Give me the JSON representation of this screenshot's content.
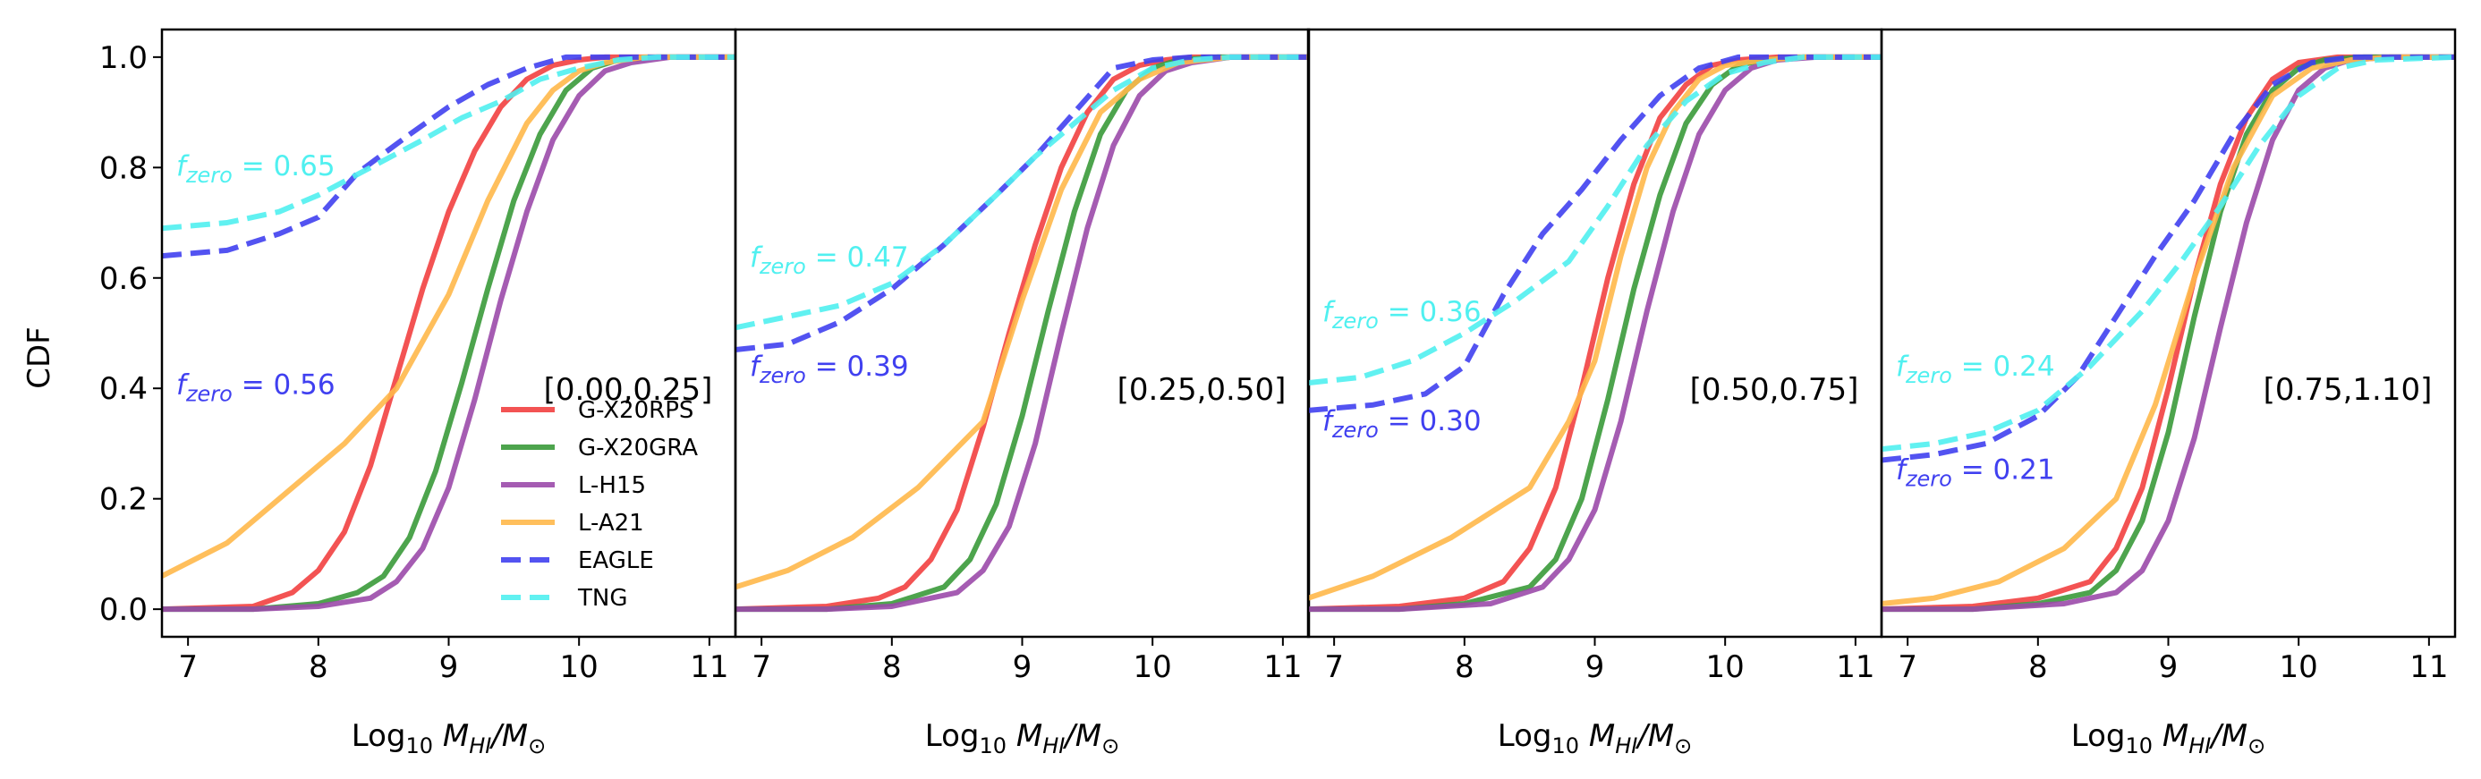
{
  "figure": {
    "ylabel": "CDF",
    "xlabel_main": "Log",
    "xlabel_sub": "10",
    "xlabel_quantity": "M",
    "xlabel_qsub": "HI",
    "xlabel_denominator": "/M",
    "xlabel_dsub": "⊙",
    "fzero_f": "f",
    "fzero_sub": "zero",
    "fzero_eq": " = "
  },
  "colors": {
    "G-X20RPS": "#f24040",
    "G-X20GRA": "#3a9a3a",
    "L-H15": "#9b4aaa",
    "L-A21": "#ffb84a",
    "EAGLE": "#4040f0",
    "TNG": "#50f0f0"
  },
  "legend": {
    "placement": "lower-right of first panel",
    "entries": [
      {
        "label": "G-X20RPS",
        "style": "solid",
        "color_key": "G-X20RPS"
      },
      {
        "label": "G-X20GRA",
        "style": "solid",
        "color_key": "G-X20GRA"
      },
      {
        "label": "L-H15",
        "style": "solid",
        "color_key": "L-H15"
      },
      {
        "label": "L-A21",
        "style": "solid",
        "color_key": "L-A21"
      },
      {
        "label": "EAGLE",
        "style": "dashed",
        "color_key": "EAGLE"
      },
      {
        "label": "TNG",
        "style": "dashed",
        "color_key": "TNG"
      }
    ]
  },
  "chart_data": [
    {
      "type": "line",
      "bin_label": "[0.00,0.25]",
      "xlim": [
        6.8,
        11.2
      ],
      "ylim": [
        -0.05,
        1.05
      ],
      "xticks": [
        "7",
        "8",
        "9",
        "10",
        "11"
      ],
      "yticks": [
        "0.0",
        "0.2",
        "0.4",
        "0.6",
        "0.8",
        "1.0"
      ],
      "fzero": [
        {
          "series": "TNG",
          "value": "0.65"
        },
        {
          "series": "EAGLE",
          "value": "0.56"
        }
      ],
      "series": [
        {
          "name": "G-X20RPS",
          "style": "solid",
          "x": [
            6.8,
            7.5,
            7.8,
            8.0,
            8.2,
            8.4,
            8.6,
            8.8,
            9.0,
            9.2,
            9.4,
            9.6,
            9.8,
            10.0,
            10.2,
            10.5,
            11.2
          ],
          "y": [
            0.0,
            0.005,
            0.03,
            0.07,
            0.14,
            0.26,
            0.42,
            0.58,
            0.72,
            0.83,
            0.91,
            0.96,
            0.985,
            0.995,
            1.0,
            1.0,
            1.0
          ]
        },
        {
          "name": "G-X20GRA",
          "style": "solid",
          "x": [
            6.8,
            7.5,
            8.0,
            8.3,
            8.5,
            8.7,
            8.9,
            9.1,
            9.3,
            9.5,
            9.7,
            9.9,
            10.1,
            10.3,
            10.6,
            11.2
          ],
          "y": [
            0.0,
            0.0,
            0.01,
            0.03,
            0.06,
            0.13,
            0.25,
            0.41,
            0.58,
            0.74,
            0.86,
            0.94,
            0.98,
            0.995,
            1.0,
            1.0
          ]
        },
        {
          "name": "L-H15",
          "style": "solid",
          "x": [
            6.8,
            7.5,
            8.0,
            8.4,
            8.6,
            8.8,
            9.0,
            9.2,
            9.4,
            9.6,
            9.8,
            10.0,
            10.2,
            10.4,
            10.7,
            11.2
          ],
          "y": [
            0.0,
            0.0,
            0.005,
            0.02,
            0.05,
            0.11,
            0.22,
            0.38,
            0.56,
            0.72,
            0.85,
            0.93,
            0.975,
            0.99,
            1.0,
            1.0
          ]
        },
        {
          "name": "L-A21",
          "style": "solid",
          "x": [
            6.8,
            7.3,
            7.8,
            8.2,
            8.6,
            9.0,
            9.3,
            9.6,
            9.8,
            10.0,
            10.2,
            10.5,
            11.2
          ],
          "y": [
            0.06,
            0.12,
            0.22,
            0.3,
            0.4,
            0.57,
            0.74,
            0.88,
            0.94,
            0.975,
            0.99,
            1.0,
            1.0
          ]
        },
        {
          "name": "EAGLE",
          "style": "dashed",
          "x": [
            6.8,
            7.3,
            7.7,
            8.0,
            8.3,
            8.7,
            9.0,
            9.3,
            9.6,
            9.9,
            10.2,
            10.5,
            11.2
          ],
          "y": [
            0.64,
            0.65,
            0.68,
            0.71,
            0.79,
            0.86,
            0.91,
            0.95,
            0.98,
            1.0,
            1.0,
            1.0,
            1.0
          ]
        },
        {
          "name": "TNG",
          "style": "dashed",
          "x": [
            6.8,
            7.3,
            7.7,
            8.0,
            8.4,
            8.8,
            9.1,
            9.4,
            9.7,
            10.0,
            10.3,
            10.6,
            11.2
          ],
          "y": [
            0.69,
            0.7,
            0.72,
            0.75,
            0.8,
            0.85,
            0.89,
            0.92,
            0.96,
            0.98,
            0.995,
            1.0,
            1.0
          ]
        }
      ]
    },
    {
      "type": "line",
      "bin_label": "[0.25,0.50]",
      "xlim": [
        6.8,
        11.2
      ],
      "ylim": [
        -0.05,
        1.05
      ],
      "xticks": [
        "7",
        "8",
        "9",
        "10",
        "11"
      ],
      "yticks": [],
      "fzero": [
        {
          "series": "TNG",
          "value": "0.47"
        },
        {
          "series": "EAGLE",
          "value": "0.39"
        }
      ],
      "series": [
        {
          "name": "G-X20RPS",
          "style": "solid",
          "x": [
            6.8,
            7.5,
            7.9,
            8.1,
            8.3,
            8.5,
            8.7,
            8.9,
            9.1,
            9.3,
            9.5,
            9.7,
            9.9,
            10.1,
            10.3,
            10.6,
            11.2
          ],
          "y": [
            0.0,
            0.005,
            0.02,
            0.04,
            0.09,
            0.18,
            0.33,
            0.5,
            0.66,
            0.8,
            0.9,
            0.96,
            0.985,
            0.995,
            1.0,
            1.0,
            1.0
          ]
        },
        {
          "name": "G-X20GRA",
          "style": "solid",
          "x": [
            6.8,
            7.5,
            8.0,
            8.4,
            8.6,
            8.8,
            9.0,
            9.2,
            9.4,
            9.6,
            9.8,
            10.0,
            10.2,
            10.5,
            11.2
          ],
          "y": [
            0.0,
            0.0,
            0.01,
            0.04,
            0.09,
            0.19,
            0.35,
            0.54,
            0.72,
            0.86,
            0.94,
            0.98,
            0.995,
            1.0,
            1.0
          ]
        },
        {
          "name": "L-H15",
          "style": "solid",
          "x": [
            6.8,
            7.5,
            8.0,
            8.5,
            8.7,
            8.9,
            9.1,
            9.3,
            9.5,
            9.7,
            9.9,
            10.1,
            10.3,
            10.6,
            11.2
          ],
          "y": [
            0.0,
            0.0,
            0.005,
            0.03,
            0.07,
            0.15,
            0.3,
            0.5,
            0.69,
            0.84,
            0.93,
            0.975,
            0.99,
            1.0,
            1.0
          ]
        },
        {
          "name": "L-A21",
          "style": "solid",
          "x": [
            6.8,
            7.2,
            7.7,
            8.2,
            8.7,
            9.0,
            9.3,
            9.6,
            9.9,
            10.2,
            10.6,
            11.2
          ],
          "y": [
            0.04,
            0.07,
            0.13,
            0.22,
            0.34,
            0.56,
            0.76,
            0.9,
            0.96,
            0.99,
            1.0,
            1.0
          ]
        },
        {
          "name": "EAGLE",
          "style": "dashed",
          "x": [
            6.8,
            7.2,
            7.6,
            8.0,
            8.4,
            8.8,
            9.1,
            9.4,
            9.7,
            10.0,
            10.3,
            10.6,
            11.2
          ],
          "y": [
            0.47,
            0.48,
            0.52,
            0.58,
            0.66,
            0.75,
            0.82,
            0.9,
            0.98,
            0.995,
            1.0,
            1.0,
            1.0
          ]
        },
        {
          "name": "TNG",
          "style": "dashed",
          "x": [
            6.8,
            7.2,
            7.6,
            8.0,
            8.4,
            8.8,
            9.1,
            9.4,
            9.7,
            10.0,
            10.3,
            10.6,
            11.2
          ],
          "y": [
            0.51,
            0.53,
            0.55,
            0.59,
            0.66,
            0.75,
            0.82,
            0.88,
            0.94,
            0.98,
            0.995,
            1.0,
            1.0
          ]
        }
      ]
    },
    {
      "type": "line",
      "bin_label": "[0.50,0.75]",
      "xlim": [
        6.8,
        11.2
      ],
      "ylim": [
        -0.05,
        1.05
      ],
      "xticks": [
        "7",
        "8",
        "9",
        "10",
        "11"
      ],
      "yticks": [],
      "fzero": [
        {
          "series": "TNG",
          "value": "0.36"
        },
        {
          "series": "EAGLE",
          "value": "0.30"
        }
      ],
      "series": [
        {
          "name": "G-X20RPS",
          "style": "solid",
          "x": [
            6.8,
            7.5,
            8.0,
            8.3,
            8.5,
            8.7,
            8.9,
            9.1,
            9.3,
            9.5,
            9.7,
            9.9,
            10.1,
            10.4,
            11.2
          ],
          "y": [
            0.0,
            0.005,
            0.02,
            0.05,
            0.11,
            0.22,
            0.4,
            0.6,
            0.77,
            0.89,
            0.95,
            0.985,
            0.995,
            1.0,
            1.0
          ]
        },
        {
          "name": "G-X20GRA",
          "style": "solid",
          "x": [
            6.8,
            7.5,
            8.0,
            8.5,
            8.7,
            8.9,
            9.1,
            9.3,
            9.5,
            9.7,
            9.9,
            10.1,
            10.3,
            10.6,
            11.2
          ],
          "y": [
            0.0,
            0.0,
            0.01,
            0.04,
            0.09,
            0.2,
            0.38,
            0.58,
            0.75,
            0.88,
            0.95,
            0.985,
            0.995,
            1.0,
            1.0
          ]
        },
        {
          "name": "L-H15",
          "style": "solid",
          "x": [
            6.8,
            7.5,
            8.2,
            8.6,
            8.8,
            9.0,
            9.2,
            9.4,
            9.6,
            9.8,
            10.0,
            10.2,
            10.4,
            10.7,
            11.2
          ],
          "y": [
            0.0,
            0.0,
            0.01,
            0.04,
            0.09,
            0.18,
            0.34,
            0.54,
            0.72,
            0.86,
            0.94,
            0.98,
            0.995,
            1.0,
            1.0
          ]
        },
        {
          "name": "L-A21",
          "style": "solid",
          "x": [
            6.8,
            7.3,
            7.9,
            8.5,
            8.8,
            9.0,
            9.2,
            9.4,
            9.6,
            9.8,
            10.0,
            10.3,
            10.6,
            11.2
          ],
          "y": [
            0.02,
            0.06,
            0.13,
            0.22,
            0.34,
            0.45,
            0.64,
            0.8,
            0.9,
            0.96,
            0.985,
            0.995,
            1.0,
            1.0
          ]
        },
        {
          "name": "EAGLE",
          "style": "dashed",
          "x": [
            6.8,
            7.3,
            7.7,
            8.0,
            8.3,
            8.6,
            8.9,
            9.2,
            9.5,
            9.8,
            10.1,
            10.4,
            10.7,
            11.2
          ],
          "y": [
            0.36,
            0.37,
            0.39,
            0.44,
            0.57,
            0.68,
            0.76,
            0.85,
            0.93,
            0.98,
            1.0,
            1.0,
            1.0,
            1.0
          ]
        },
        {
          "name": "TNG",
          "style": "dashed",
          "x": [
            6.8,
            7.2,
            7.6,
            8.0,
            8.4,
            8.8,
            9.1,
            9.4,
            9.7,
            10.0,
            10.3,
            10.6,
            11.2
          ],
          "y": [
            0.41,
            0.42,
            0.45,
            0.5,
            0.56,
            0.63,
            0.73,
            0.84,
            0.92,
            0.97,
            0.99,
            1.0,
            1.0
          ]
        }
      ]
    },
    {
      "type": "line",
      "bin_label": "[0.75,1.10]",
      "xlim": [
        6.8,
        11.2
      ],
      "ylim": [
        -0.05,
        1.05
      ],
      "xticks": [
        "7",
        "8",
        "9",
        "10",
        "11"
      ],
      "yticks": [],
      "fzero": [
        {
          "series": "TNG",
          "value": "0.24"
        },
        {
          "series": "EAGLE",
          "value": "0.21"
        }
      ],
      "series": [
        {
          "name": "G-X20RPS",
          "style": "solid",
          "x": [
            6.8,
            7.5,
            8.0,
            8.4,
            8.6,
            8.8,
            9.0,
            9.2,
            9.4,
            9.6,
            9.8,
            10.0,
            10.3,
            10.6,
            11.2
          ],
          "y": [
            0.0,
            0.005,
            0.02,
            0.05,
            0.11,
            0.22,
            0.4,
            0.6,
            0.77,
            0.89,
            0.96,
            0.99,
            1.0,
            1.0,
            1.0
          ]
        },
        {
          "name": "G-X20GRA",
          "style": "solid",
          "x": [
            6.8,
            7.5,
            8.0,
            8.4,
            8.6,
            8.8,
            9.0,
            9.2,
            9.4,
            9.6,
            9.8,
            10.0,
            10.2,
            10.5,
            11.2
          ],
          "y": [
            0.0,
            0.0,
            0.01,
            0.03,
            0.07,
            0.16,
            0.32,
            0.53,
            0.72,
            0.86,
            0.94,
            0.98,
            0.995,
            1.0,
            1.0
          ]
        },
        {
          "name": "L-H15",
          "style": "solid",
          "x": [
            6.8,
            7.5,
            8.2,
            8.6,
            8.8,
            9.0,
            9.2,
            9.4,
            9.6,
            9.8,
            10.0,
            10.2,
            10.4,
            10.7,
            11.2
          ],
          "y": [
            0.0,
            0.0,
            0.01,
            0.03,
            0.07,
            0.16,
            0.31,
            0.51,
            0.7,
            0.85,
            0.94,
            0.98,
            0.995,
            1.0,
            1.0
          ]
        },
        {
          "name": "L-A21",
          "style": "solid",
          "x": [
            6.8,
            7.2,
            7.7,
            8.2,
            8.6,
            8.9,
            9.2,
            9.5,
            9.8,
            10.1,
            10.4,
            10.7,
            11.2
          ],
          "y": [
            0.01,
            0.02,
            0.05,
            0.11,
            0.2,
            0.37,
            0.6,
            0.8,
            0.93,
            0.98,
            0.995,
            1.0,
            1.0
          ]
        },
        {
          "name": "EAGLE",
          "style": "dashed",
          "x": [
            6.8,
            7.2,
            7.6,
            8.0,
            8.3,
            8.6,
            8.9,
            9.2,
            9.5,
            9.8,
            10.1,
            10.4,
            10.7,
            11.2
          ],
          "y": [
            0.27,
            0.28,
            0.3,
            0.35,
            0.42,
            0.53,
            0.64,
            0.74,
            0.86,
            0.95,
            0.99,
            1.0,
            1.0,
            1.0
          ]
        },
        {
          "name": "TNG",
          "style": "dashed",
          "x": [
            6.8,
            7.2,
            7.6,
            8.0,
            8.4,
            8.8,
            9.1,
            9.4,
            9.7,
            10.0,
            10.3,
            10.6,
            11.2
          ],
          "y": [
            0.29,
            0.3,
            0.32,
            0.36,
            0.44,
            0.54,
            0.63,
            0.73,
            0.84,
            0.93,
            0.98,
            0.995,
            1.0
          ]
        }
      ]
    }
  ]
}
